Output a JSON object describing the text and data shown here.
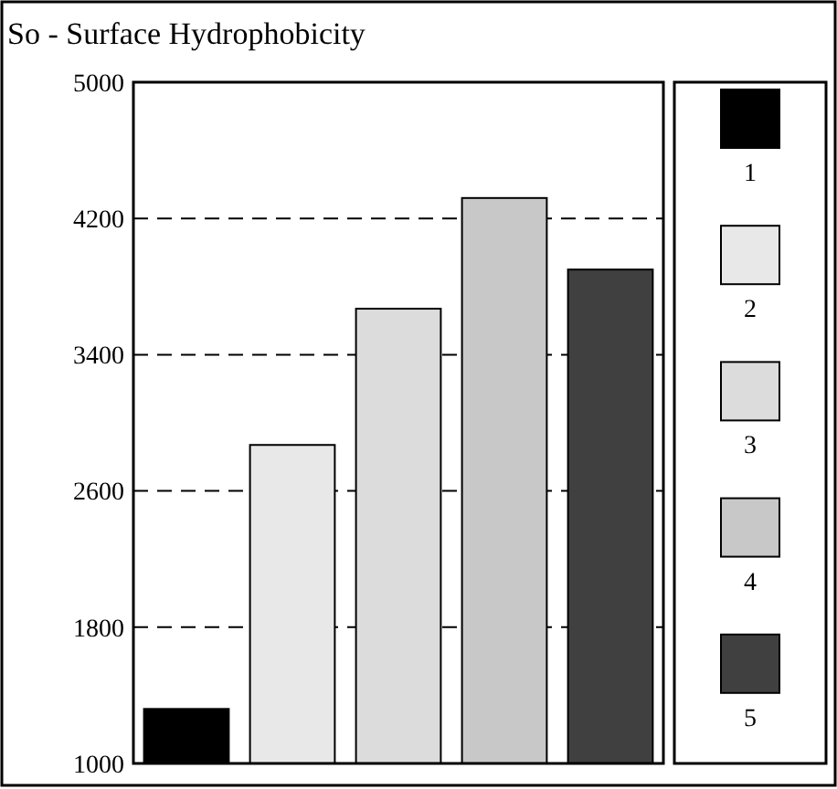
{
  "chart_data": {
    "type": "bar",
    "title": "So - Surface Hydrophobicity",
    "categories": [
      null
    ],
    "series": [
      {
        "name": "1",
        "color": "#000000",
        "values": [
          1320
        ]
      },
      {
        "name": "2",
        "color": "#e8e8e8",
        "values": [
          2870
        ]
      },
      {
        "name": "3",
        "color": "#dcdcdc",
        "values": [
          3670
        ]
      },
      {
        "name": "4",
        "color": "#c8c8c8",
        "values": [
          4320
        ]
      },
      {
        "name": "5",
        "color": "#404040",
        "values": [
          3900
        ]
      }
    ],
    "ylim": [
      1000,
      5000
    ],
    "yticks": [
      1000,
      1800,
      2600,
      3400,
      4200,
      5000
    ],
    "grid": "y",
    "line_style": "dashed",
    "legend": "right"
  }
}
